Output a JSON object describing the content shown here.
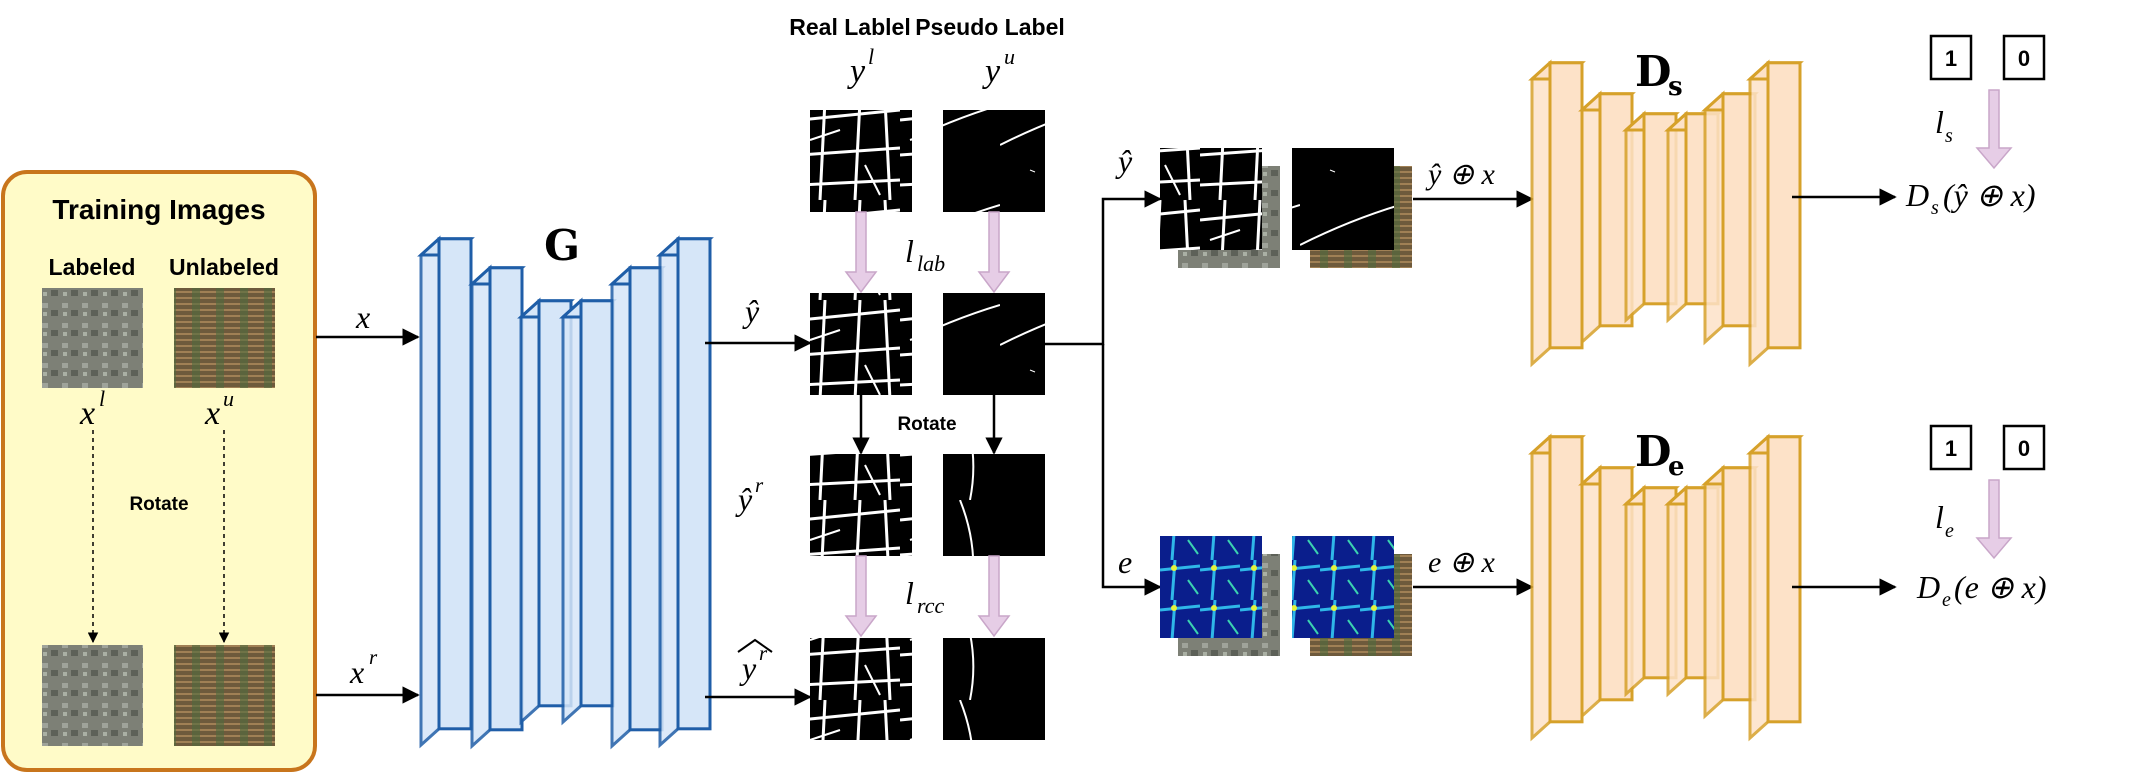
{
  "training_box": {
    "title": "Training Images",
    "col_labeled": "Labeled",
    "col_unlabeled": "Unlabeled",
    "rotate": "Rotate",
    "var_xl": "x",
    "var_xl_sup": "l",
    "var_xu": "x",
    "var_xu_sup": "u"
  },
  "inputs": {
    "x": "x",
    "xr": "x",
    "xr_sup": "r"
  },
  "generator": {
    "label": "G"
  },
  "labels": {
    "real_label": "Real Lablel",
    "pseudo_label": "Pseudo Label",
    "yl": "y",
    "yl_sup": "l",
    "yu": "y",
    "yu_sup": "u",
    "l_lab": "l",
    "l_lab_sub": "lab",
    "l_rcc": "l",
    "l_rcc_sub": "rcc",
    "rotate": "Rotate",
    "yhat": "ŷ",
    "yhat_r": "ŷ",
    "yhat_r_sup": "r",
    "ywide_r": "y",
    "ywide_r_sup": "r"
  },
  "branches": {
    "yhat": "ŷ",
    "e": "e",
    "yhat_oplus_x": "ŷ ⊕ x",
    "e_oplus_x": "e ⊕ x"
  },
  "discriminators": {
    "ds_label": "D",
    "ds_sub": "s",
    "de_label": "D",
    "de_sub": "e",
    "ds_output": "D",
    "ds_output_sub": "s",
    "ds_output_arg": "(ŷ ⊕ x)",
    "de_output": "D",
    "de_output_sub": "e",
    "de_output_arg": "(e ⊕ x)",
    "ls": "l",
    "ls_sub": "s",
    "le": "l",
    "le_sub": "e",
    "box_one": "1",
    "box_zero": "0"
  },
  "colors": {
    "training_fill": "#fffbc8",
    "training_border": "#c8751c",
    "generator_fill": "#d6e6f8",
    "generator_border": "#1f5ea8",
    "disc_fill": "#fde2c8",
    "disc_border": "#d6a12a",
    "loss_arrow": "#e6cde6",
    "heatmap_bg": "#0a1e8c"
  }
}
